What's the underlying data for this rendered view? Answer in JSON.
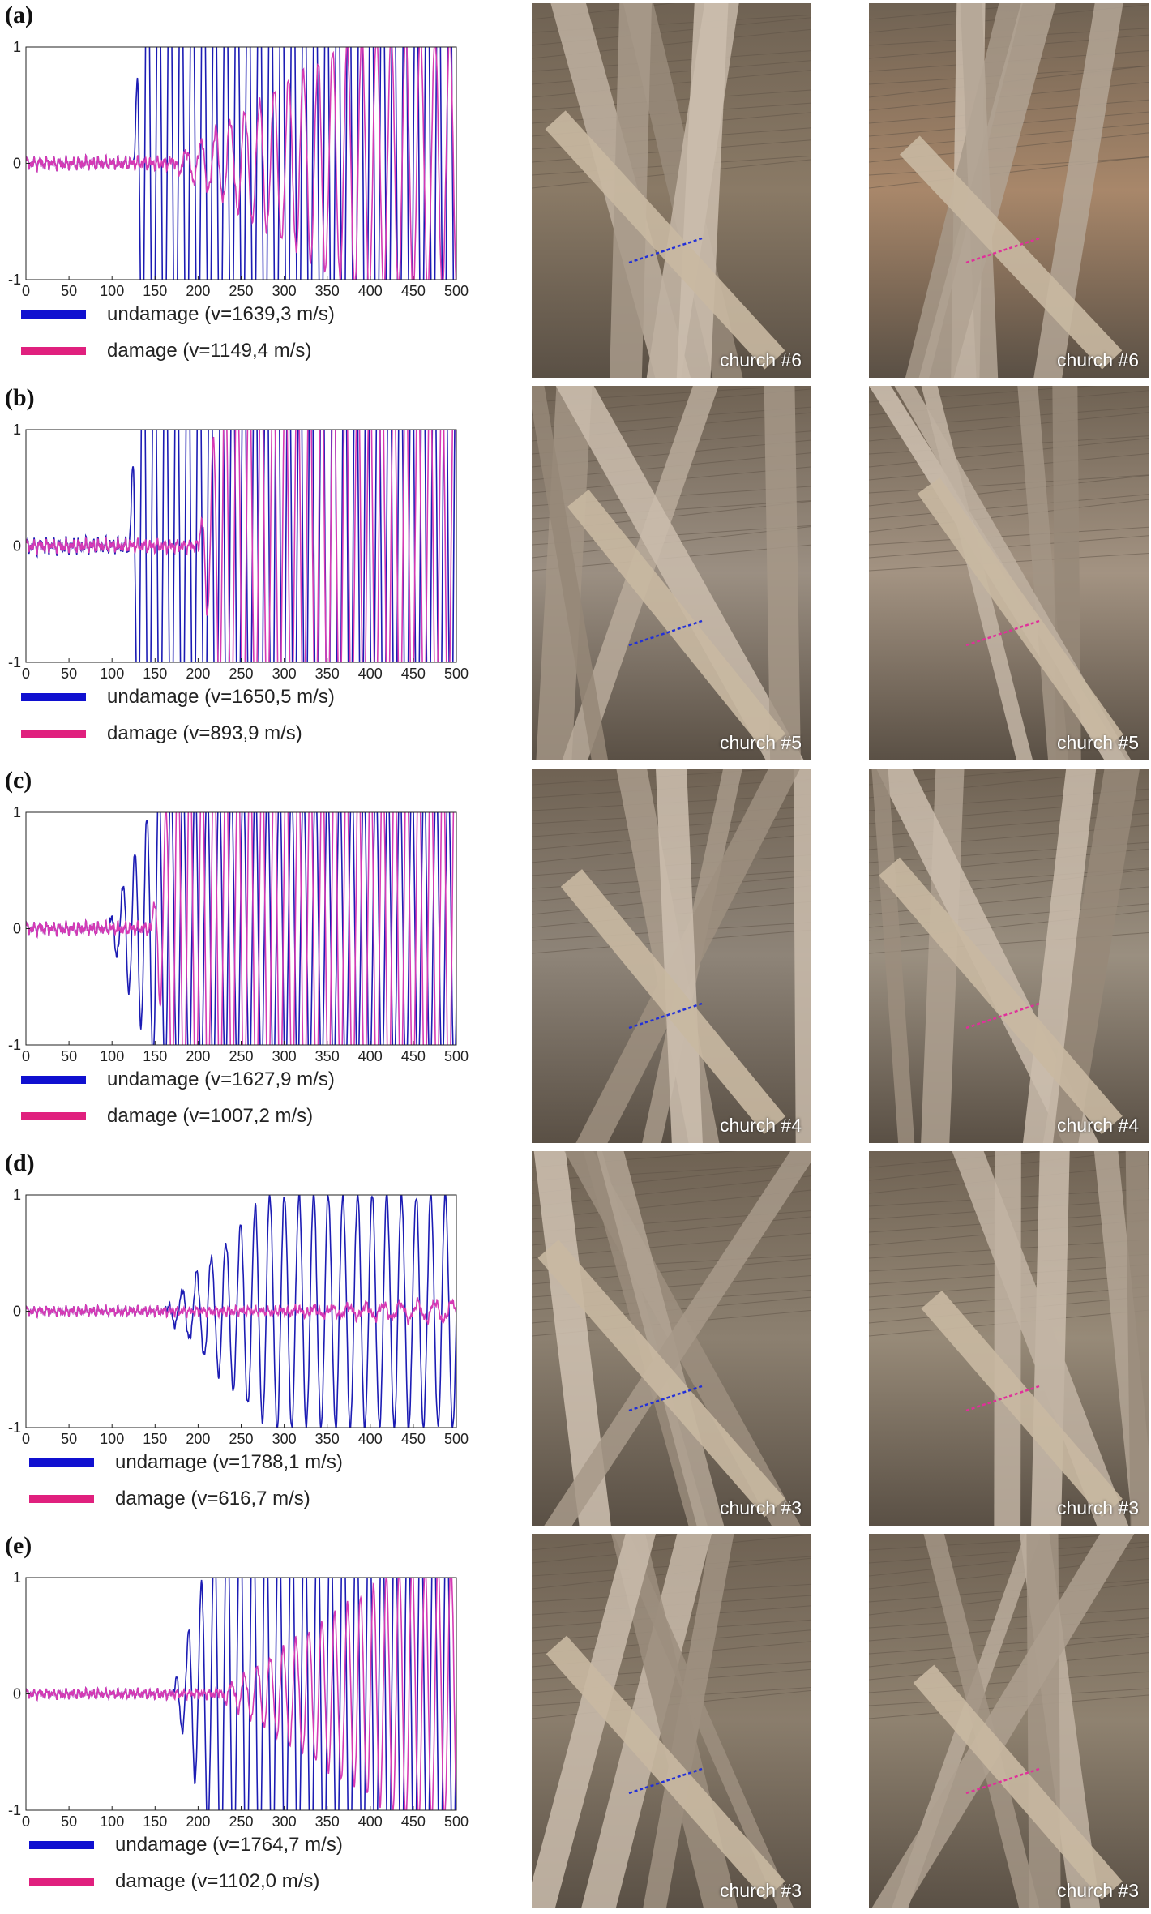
{
  "colors": {
    "undamage": "#1c1cb4",
    "damage": "#d63ab4",
    "legend_undamage": "#1010d0",
    "legend_damage": "#e0207e"
  },
  "panels": [
    {
      "label": "(a)",
      "legend": {
        "undamage": "undamage (v=1639,3 m/s)",
        "damage": "damage (v=1149,4 m/s)"
      },
      "photos": [
        {
          "caption": "church #6",
          "marker": "blue",
          "tone": "#8a7a66"
        },
        {
          "caption": "church #6",
          "marker": "magenta",
          "tone": "#a8876a"
        }
      ]
    },
    {
      "label": "(b)",
      "legend": {
        "undamage": "undamage (v=1650,5 m/s)",
        "damage": "damage (v=893,9 m/s)"
      },
      "photos": [
        {
          "caption": "church #5",
          "marker": "blue",
          "tone": "#9b8f82"
        },
        {
          "caption": "church #5",
          "marker": "magenta",
          "tone": "#a39382"
        }
      ]
    },
    {
      "label": "(c)",
      "legend": {
        "undamage": "undamage (v=1627,9 m/s)",
        "damage": "damage (v=1007,2 m/s)"
      },
      "photos": [
        {
          "caption": "church #4",
          "marker": "blue",
          "tone": "#8e8478"
        },
        {
          "caption": "church #4",
          "marker": "magenta",
          "tone": "#9a8f80"
        }
      ]
    },
    {
      "label": "(d)",
      "legend": {
        "undamage": "undamage (v=1788,1 m/s)",
        "damage": "damage (v=616,7 m/s)"
      },
      "photos": [
        {
          "caption": "church #3",
          "marker": "blue",
          "tone": "#8c8070"
        },
        {
          "caption": "church #3",
          "marker": "magenta",
          "tone": "#978a78"
        }
      ]
    },
    {
      "label": "(e)",
      "legend": {
        "undamage": "undamage (v=1764,7 m/s)",
        "damage": "damage (v=1102,0 m/s)"
      },
      "photos": [
        {
          "caption": "church #3",
          "marker": "blue",
          "tone": "#8a7d6c"
        },
        {
          "caption": "church #3",
          "marker": "magenta",
          "tone": "#8f8270"
        }
      ]
    }
  ],
  "chart_data": [
    {
      "type": "line",
      "panel": "(a)",
      "xlim": [
        0,
        500
      ],
      "ylim": [
        -1,
        1
      ],
      "xticks": [
        0,
        50,
        100,
        150,
        200,
        250,
        300,
        350,
        400,
        450,
        500
      ],
      "yticks": [
        -1,
        0,
        1
      ],
      "series": [
        {
          "name": "undamage (v=1639,3 m/s)",
          "onset": 125,
          "period": 13,
          "ramp": 12,
          "amp": 2.2,
          "noise": 0.04
        },
        {
          "name": "damage (v=1149,4 m/s)",
          "onset": 165,
          "period": 17,
          "ramp": 220,
          "amp": 1.1,
          "noise": 0.04
        }
      ]
    },
    {
      "type": "line",
      "panel": "(b)",
      "xlim": [
        0,
        500
      ],
      "ylim": [
        -1,
        1
      ],
      "xticks": [
        0,
        50,
        100,
        150,
        200,
        250,
        300,
        350,
        400,
        450,
        500
      ],
      "yticks": [
        -1,
        0,
        1
      ],
      "series": [
        {
          "name": "undamage (v=1650,5 m/s)",
          "onset": 120,
          "period": 13,
          "ramp": 12,
          "amp": 2.2,
          "noise": 0.05
        },
        {
          "name": "damage (v=893,9 m/s)",
          "onset": 200,
          "period": 14,
          "ramp": 30,
          "amp": 1.6,
          "noise": 0.04
        }
      ]
    },
    {
      "type": "line",
      "panel": "(c)",
      "xlim": [
        0,
        500
      ],
      "ylim": [
        -1,
        1
      ],
      "xticks": [
        0,
        50,
        100,
        150,
        200,
        250,
        300,
        350,
        400,
        450,
        500
      ],
      "yticks": [
        -1,
        0,
        1
      ],
      "series": [
        {
          "name": "undamage (v=1627,9 m/s)",
          "onset": 95,
          "period": 14,
          "ramp": 60,
          "amp": 1.3,
          "noise": 0.04
        },
        {
          "name": "damage (v=1007,2 m/s)",
          "onset": 145,
          "period": 14,
          "ramp": 25,
          "amp": 1.5,
          "noise": 0.04
        }
      ]
    },
    {
      "type": "line",
      "panel": "(d)",
      "xlim": [
        0,
        500
      ],
      "ylim": [
        -1,
        1
      ],
      "xticks": [
        0,
        50,
        100,
        150,
        200,
        250,
        300,
        350,
        400,
        450,
        500
      ],
      "yticks": [
        -1,
        0,
        1
      ],
      "series": [
        {
          "name": "undamage (v=1788,1 m/s)",
          "onset": 160,
          "period": 17,
          "ramp": 120,
          "amp": 1.0,
          "noise": 0.03
        },
        {
          "name": "damage (v=616,7 m/s)",
          "onset": 270,
          "period": 20,
          "ramp": 200,
          "amp": 0.08,
          "noise": 0.03
        }
      ]
    },
    {
      "type": "line",
      "panel": "(e)",
      "xlim": [
        0,
        500
      ],
      "ylim": [
        -1,
        1
      ],
      "xticks": [
        0,
        50,
        100,
        150,
        200,
        250,
        300,
        350,
        400,
        450,
        500
      ],
      "yticks": [
        -1,
        0,
        1
      ],
      "series": [
        {
          "name": "undamage (v=1764,7 m/s)",
          "onset": 170,
          "period": 15,
          "ramp": 60,
          "amp": 1.7,
          "noise": 0.03
        },
        {
          "name": "damage (v=1102,0 m/s)",
          "onset": 220,
          "period": 15,
          "ramp": 220,
          "amp": 1.1,
          "noise": 0.03
        }
      ]
    }
  ]
}
